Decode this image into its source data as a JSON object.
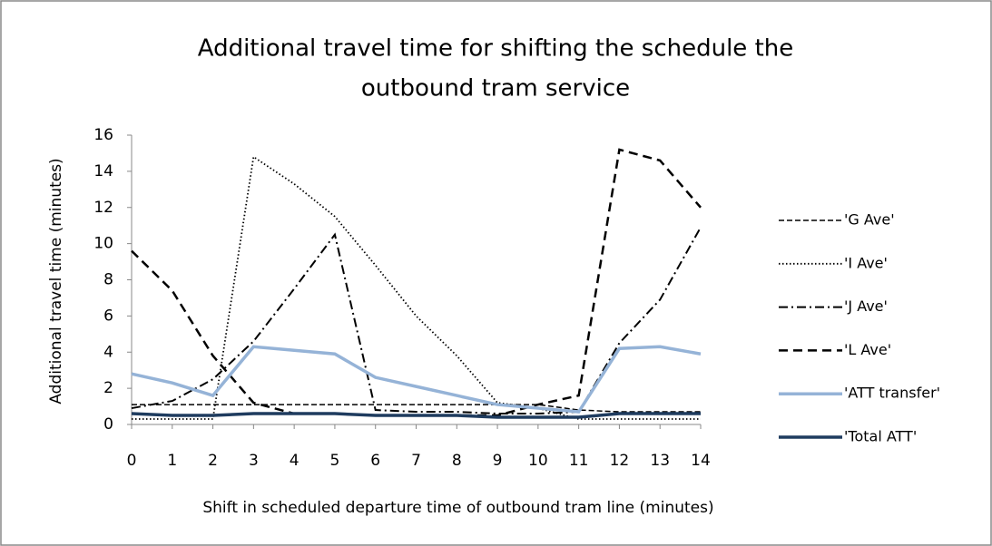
{
  "chart_data": {
    "type": "line",
    "title": "Additional travel time for shifting the schedule the",
    "subtitle": "outbound tram service",
    "x_label": "Shift in scheduled departure time of outbound tram line (minutes)",
    "y_label": "Additional travel time (minutes)",
    "x": [
      0,
      1,
      2,
      3,
      4,
      5,
      6,
      7,
      8,
      9,
      10,
      11,
      12,
      13,
      14
    ],
    "xlim": [
      0,
      14
    ],
    "xticks": [
      0,
      1,
      2,
      3,
      4,
      5,
      6,
      7,
      8,
      9,
      10,
      11,
      12,
      13,
      14
    ],
    "ylim": [
      0,
      16
    ],
    "yticks": [
      0,
      2,
      4,
      6,
      8,
      10,
      12,
      14,
      16
    ],
    "grid": false,
    "legend": "right",
    "series": [
      {
        "name": "'G Ave'",
        "color": "#000000",
        "dash": "6,3",
        "width": 1.5,
        "values": [
          1.1,
          1.1,
          1.1,
          1.1,
          1.1,
          1.1,
          1.1,
          1.1,
          1.1,
          1.1,
          1.1,
          0.8,
          0.7,
          0.7,
          0.7
        ]
      },
      {
        "name": "'I Ave'",
        "color": "#000000",
        "dash": "1.5,2.5",
        "width": 1.8,
        "values": [
          0.3,
          0.3,
          0.3,
          14.8,
          13.3,
          11.5,
          8.8,
          6,
          3.8,
          1.2,
          0.9,
          0.3,
          0.3,
          0.3,
          0.3
        ]
      },
      {
        "name": "'J Ave'",
        "color": "#000000",
        "dash": "10,4,2,4",
        "width": 2,
        "values": [
          0.9,
          1.3,
          2.5,
          4.6,
          7.5,
          10.5,
          0.8,
          0.7,
          0.7,
          0.6,
          0.6,
          0.7,
          4.5,
          6.9,
          10.9
        ]
      },
      {
        "name": "'L Ave'",
        "color": "#000000",
        "dash": "10,6",
        "width": 2.5,
        "values": [
          9.6,
          7.4,
          3.8,
          1.2,
          0.6,
          0.6,
          0.5,
          0.5,
          0.5,
          0.5,
          1.1,
          1.6,
          15.2,
          14.6,
          12
        ]
      },
      {
        "name": "'ATT transfer'",
        "color": "#95b3d7",
        "dash": "none",
        "width": 3.5,
        "values": [
          2.8,
          2.3,
          1.6,
          4.3,
          4.1,
          3.9,
          2.6,
          2.1,
          1.6,
          1.1,
          0.9,
          0.7,
          4.2,
          4.3,
          3.9
        ]
      },
      {
        "name": "'Total ATT'",
        "color": "#1f3c5f",
        "dash": "none",
        "width": 3.5,
        "values": [
          0.6,
          0.5,
          0.5,
          0.6,
          0.6,
          0.6,
          0.5,
          0.5,
          0.5,
          0.4,
          0.4,
          0.4,
          0.6,
          0.6,
          0.6
        ]
      }
    ]
  }
}
